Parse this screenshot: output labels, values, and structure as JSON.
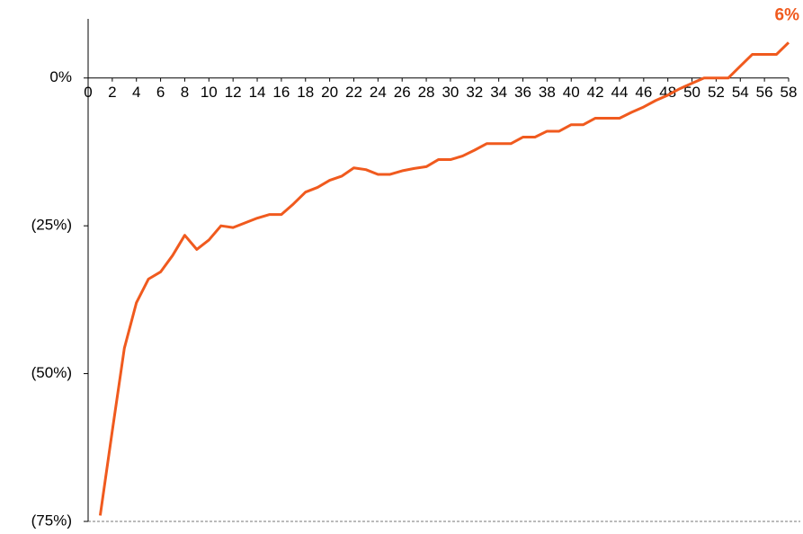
{
  "chart_data": {
    "type": "line",
    "x": [
      1,
      2,
      3,
      4,
      5,
      6,
      7,
      8,
      9,
      10,
      11,
      12,
      13,
      14,
      15,
      16,
      17,
      18,
      19,
      20,
      21,
      22,
      23,
      24,
      25,
      26,
      27,
      28,
      29,
      30,
      31,
      32,
      33,
      34,
      35,
      36,
      37,
      38,
      39,
      40,
      41,
      42,
      43,
      44,
      45,
      46,
      47,
      48,
      49,
      50,
      51,
      52,
      53,
      54,
      55,
      56,
      57,
      58
    ],
    "series": [
      {
        "name": null,
        "color": "#f05a1e",
        "values": [
          -74,
          -59.7,
          -45.7,
          -38,
          -34,
          -32.8,
          -30,
          -26.6,
          -29,
          -27.4,
          -25,
          -25.3,
          -24.5,
          -23.7,
          -23.1,
          -23.1,
          -21.3,
          -19.3,
          -18.5,
          -17.3,
          -16.6,
          -15.2,
          -15.5,
          -16.3,
          -16.3,
          -15.7,
          -15.3,
          -15,
          -13.8,
          -13.8,
          -13.2,
          -12.2,
          -11.1,
          -11.1,
          -11.1,
          -10,
          -10,
          -9,
          -9,
          -7.9,
          -7.9,
          -6.8,
          -6.8,
          -6.8,
          -5.8,
          -4.9,
          -3.8,
          -2.9,
          -1.8,
          -0.9,
          0,
          0,
          0,
          2,
          4,
          4,
          4,
          6
        ],
        "value_labels": [
          null,
          null,
          null,
          null,
          null,
          null,
          null,
          null,
          null,
          null,
          null,
          null,
          null,
          null,
          null,
          null,
          null,
          null,
          null,
          null,
          null,
          null,
          null,
          null,
          null,
          null,
          null,
          null,
          null,
          null,
          null,
          null,
          null,
          null,
          null,
          null,
          null,
          null,
          null,
          null,
          null,
          null,
          null,
          null,
          null,
          null,
          null,
          null,
          null,
          null,
          null,
          null,
          null,
          null,
          null,
          null,
          null,
          "6%"
        ]
      }
    ],
    "xlim": [
      0,
      58
    ],
    "xticks": [
      0,
      2,
      4,
      6,
      8,
      10,
      12,
      14,
      16,
      18,
      20,
      22,
      24,
      26,
      28,
      30,
      32,
      34,
      36,
      38,
      40,
      42,
      44,
      46,
      48,
      50,
      52,
      54,
      56,
      58
    ],
    "ylim": [
      -75,
      10
    ],
    "yticks": [
      {
        "value": 0,
        "label": "0%"
      },
      {
        "value": -25,
        "label": "(25%)"
      },
      {
        "value": -50,
        "label": "(50%)"
      },
      {
        "value": -75,
        "label": "(75%)"
      }
    ]
  }
}
